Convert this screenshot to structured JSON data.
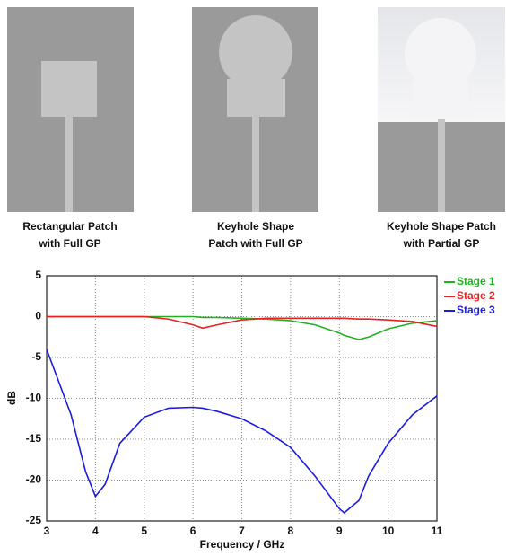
{
  "panels": [
    {
      "caption": [
        "Rectangular Patch",
        "with Full GP"
      ]
    },
    {
      "caption": [
        "Keyhole Shape",
        "Patch with Full GP"
      ]
    },
    {
      "caption": [
        "Keyhole Shape Patch",
        "with Partial GP"
      ]
    }
  ],
  "chart_data": {
    "type": "line",
    "xlabel": "Frequency / GHz",
    "ylabel": "dB",
    "x": [
      3,
      3.5,
      3.8,
      4,
      4.2,
      4.5,
      5,
      5.5,
      6,
      6.2,
      6.5,
      7,
      7.5,
      8,
      8.5,
      9,
      9.1,
      9.4,
      9.6,
      10,
      10.5,
      11
    ],
    "series": [
      {
        "name": "Stage 1",
        "color": "#22b022",
        "values": [
          0,
          0,
          0,
          0,
          0,
          0,
          0,
          0,
          0,
          -0.1,
          -0.1,
          -0.2,
          -0.3,
          -0.5,
          -1,
          -2,
          -2.3,
          -2.8,
          -2.5,
          -1.5,
          -0.8,
          -0.5
        ]
      },
      {
        "name": "Stage 2",
        "color": "#e82020",
        "values": [
          0,
          0,
          0,
          0,
          0,
          0,
          0,
          -0.3,
          -1,
          -1.4,
          -1,
          -0.4,
          -0.2,
          -0.2,
          -0.2,
          -0.2,
          -0.2,
          -0.3,
          -0.3,
          -0.4,
          -0.6,
          -1.2
        ]
      },
      {
        "name": "Stage 3",
        "color": "#1c1ce0",
        "values": [
          -4,
          -12,
          -19,
          -22,
          -20.5,
          -15.5,
          -12.3,
          -11.2,
          -11.1,
          -11.2,
          -11.6,
          -12.5,
          -14,
          -16,
          -19.5,
          -23.5,
          -24,
          -22.5,
          -19.5,
          -15.5,
          -12,
          -9.7
        ]
      }
    ],
    "xlim": [
      3,
      11
    ],
    "xticks": [
      3,
      4,
      5,
      6,
      7,
      8,
      9,
      10,
      11
    ],
    "ylim": [
      -25,
      5
    ],
    "yticks": [
      -25,
      -20,
      -15,
      -10,
      -5,
      0,
      5
    ],
    "grid": true,
    "legend": "outside-right"
  }
}
